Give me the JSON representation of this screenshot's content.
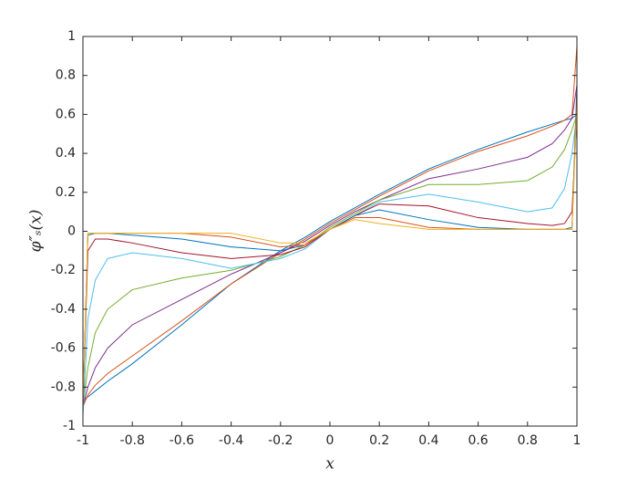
{
  "chart_data": {
    "type": "line",
    "xlabel": "x",
    "ylabel": "φ″ₛ(x)",
    "x": [
      -1,
      -0.98,
      -0.95,
      -0.9,
      -0.8,
      -0.6,
      -0.4,
      -0.2,
      -0.1,
      0,
      0.1,
      0.2,
      0.4,
      0.6,
      0.8,
      0.9,
      0.95,
      0.98,
      1
    ],
    "xlim": [
      -1,
      1
    ],
    "ylim": [
      -1,
      1
    ],
    "xticks": [
      -1,
      -0.8,
      -0.6,
      -0.4,
      -0.2,
      0,
      0.2,
      0.4,
      0.6,
      0.8,
      1
    ],
    "yticks": [
      -1,
      -0.8,
      -0.6,
      -0.4,
      -0.2,
      0,
      0.2,
      0.4,
      0.6,
      0.8,
      1
    ],
    "grid": false,
    "series": [
      {
        "color": "#0072BD",
        "values": [
          -0.87,
          -0.85,
          -0.82,
          -0.77,
          -0.68,
          -0.48,
          -0.27,
          -0.1,
          -0.03,
          0.05,
          0.12,
          0.19,
          0.32,
          0.42,
          0.51,
          0.55,
          0.57,
          0.58,
          0.6
        ]
      },
      {
        "color": "#D95319",
        "values": [
          -0.9,
          -0.84,
          -0.79,
          -0.73,
          -0.64,
          -0.46,
          -0.27,
          -0.11,
          -0.04,
          0.04,
          0.11,
          0.18,
          0.31,
          0.41,
          0.49,
          0.54,
          0.57,
          0.6,
          0.95
        ]
      },
      {
        "color": "#7E2F8E",
        "values": [
          -0.9,
          -0.8,
          -0.7,
          -0.6,
          -0.48,
          -0.35,
          -0.22,
          -0.11,
          -0.05,
          0.03,
          0.1,
          0.16,
          0.27,
          0.32,
          0.38,
          0.45,
          0.52,
          0.58,
          0.75
        ]
      },
      {
        "color": "#77AC30",
        "values": [
          -0.9,
          -0.7,
          -0.52,
          -0.4,
          -0.3,
          -0.24,
          -0.2,
          -0.13,
          -0.07,
          0.02,
          0.09,
          0.16,
          0.24,
          0.24,
          0.26,
          0.33,
          0.42,
          0.52,
          0.6
        ]
      },
      {
        "color": "#4DBEEE",
        "values": [
          -0.95,
          -0.45,
          -0.25,
          -0.14,
          -0.11,
          -0.14,
          -0.19,
          -0.14,
          -0.09,
          0.01,
          0.08,
          0.15,
          0.19,
          0.15,
          0.1,
          0.12,
          0.22,
          0.4,
          0.6
        ]
      },
      {
        "color": "#A2142F",
        "values": [
          -0.9,
          -0.1,
          -0.04,
          -0.04,
          -0.06,
          -0.11,
          -0.14,
          -0.12,
          -0.08,
          0.01,
          0.08,
          0.14,
          0.13,
          0.07,
          0.04,
          0.03,
          0.04,
          0.1,
          0.6
        ]
      },
      {
        "color": "#0072BD",
        "values": [
          -0.9,
          -0.02,
          -0.01,
          -0.01,
          -0.02,
          -0.04,
          -0.08,
          -0.1,
          -0.07,
          0.01,
          0.08,
          0.11,
          0.06,
          0.02,
          0.01,
          0.01,
          0.01,
          0.02,
          0.75
        ]
      },
      {
        "color": "#D95319",
        "values": [
          -0.9,
          -0.01,
          -0.01,
          -0.01,
          -0.01,
          -0.01,
          -0.03,
          -0.08,
          -0.07,
          0.01,
          0.07,
          0.07,
          0.02,
          0.01,
          0.01,
          0.01,
          0.01,
          0.01,
          0.7
        ]
      },
      {
        "color": "#EDB120",
        "values": [
          -0.9,
          -0.01,
          -0.01,
          -0.01,
          -0.01,
          -0.01,
          -0.01,
          -0.06,
          -0.06,
          0.01,
          0.06,
          0.04,
          0.01,
          0.01,
          0.01,
          0.01,
          0.01,
          0.01,
          0.65
        ]
      }
    ]
  }
}
